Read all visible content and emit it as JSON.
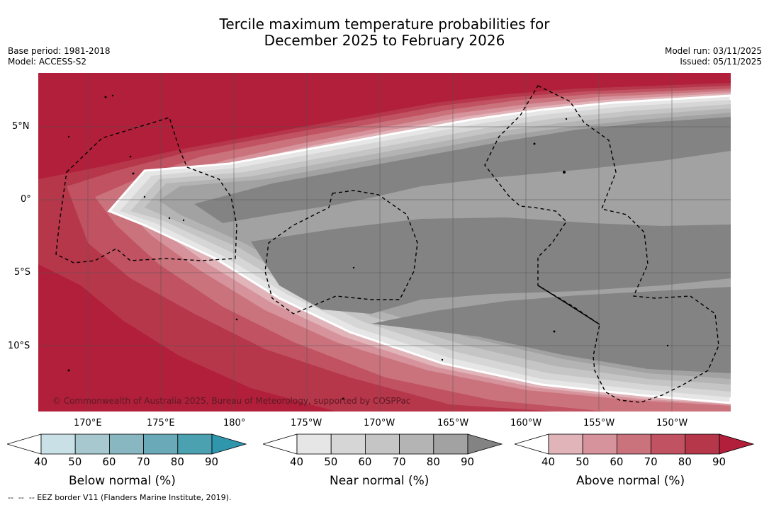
{
  "header": {
    "title_line1": "Tercile maximum temperature probabilities for",
    "title_line2": "December 2025 to February 2026",
    "base_period": "Base period: 1981-2018",
    "model": "Model: ACCESS-S2",
    "model_run": "Model run: 03/11/2025",
    "issued": "Issued: 05/11/2025"
  },
  "map": {
    "lat_labels": [
      "5°N",
      "0°",
      "5°S",
      "10°S"
    ],
    "lon_labels": [
      "170°E",
      "175°E",
      "180°",
      "175°W",
      "170°W",
      "165°W",
      "160°W",
      "155°W",
      "150°W"
    ],
    "credit": "© Commonwealth of Australia 2025, Bureau of Meteorology, supported by COSPPac"
  },
  "colorbars": [
    {
      "name": "below",
      "title": "Below normal (%)",
      "ticks": [
        "40",
        "50",
        "60",
        "70",
        "80",
        "90"
      ],
      "colors": [
        "#c9e0e6",
        "#a7c8cf",
        "#88b7c2",
        "#6aaab8",
        "#4ca1b1",
        "#2f96ac"
      ]
    },
    {
      "name": "near",
      "title": "Near normal (%)",
      "ticks": [
        "40",
        "50",
        "60",
        "70",
        "80",
        "90"
      ],
      "colors": [
        "#e6e6e6",
        "#d6d6d6",
        "#c5c5c5",
        "#b4b4b4",
        "#a2a2a2",
        "#838383"
      ]
    },
    {
      "name": "above",
      "title": "Above normal (%)",
      "ticks": [
        "40",
        "50",
        "60",
        "70",
        "80",
        "90"
      ],
      "colors": [
        "#e1b4ba",
        "#d6939b",
        "#cb737d",
        "#c05262",
        "#b6364a",
        "#b11f3a"
      ]
    }
  ],
  "footnote": "--  --  -- EEZ border V11 (Flanders Marine Institute, 2019)."
}
